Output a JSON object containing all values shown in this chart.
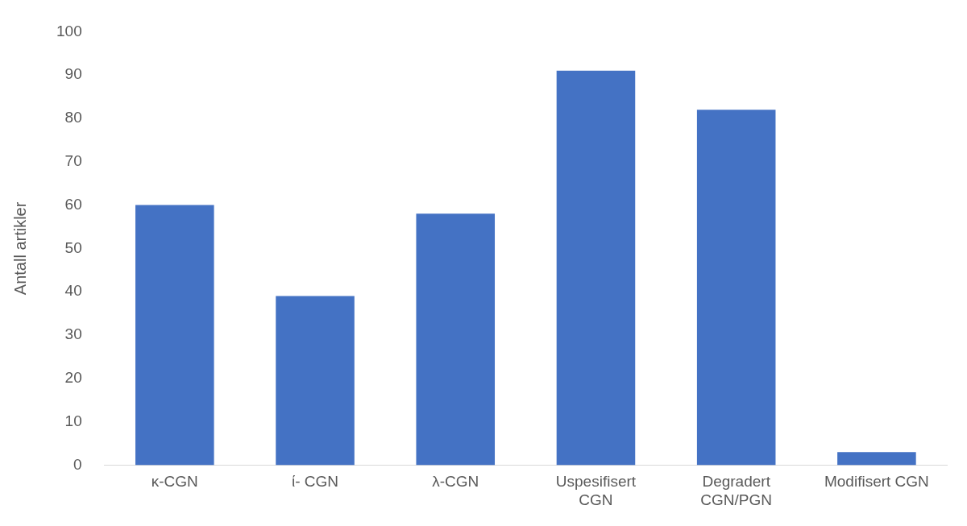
{
  "chart_data": {
    "type": "bar",
    "ylabel": "Antall artikler",
    "categories": [
      "κ-CGN",
      "ί- CGN",
      "λ-CGN",
      "Uspesifisert\nCGN",
      "Degradert\nCGN/PGN",
      "Modifisert CGN"
    ],
    "values": [
      60,
      39,
      58,
      91,
      82,
      3
    ],
    "color": "#4472c4",
    "ylim": [
      0,
      100
    ],
    "yticks": [
      0,
      10,
      20,
      30,
      40,
      50,
      60,
      70,
      80,
      90,
      100
    ],
    "grid": false,
    "legend": false
  }
}
